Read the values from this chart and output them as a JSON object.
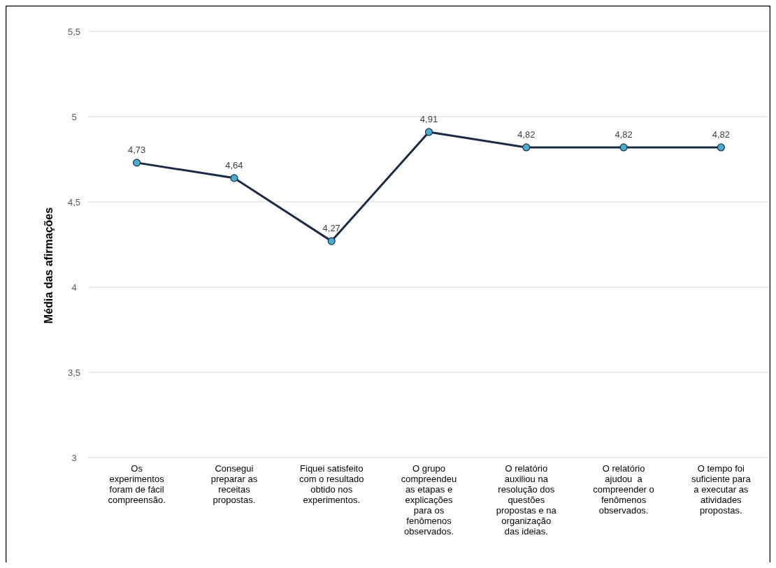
{
  "chart_data": {
    "type": "line",
    "ylabel": "Média das afirmações",
    "categories": [
      "Os experimentos foram de fácil compreensão.",
      "Consegui preparar as receitas propostas.",
      "Fiquei satisfeito com o resultado obtido nos experimentos.",
      "O grupo compreendeu as etapas e explicações para os fenômenos observados.",
      "O relatório auxiliou na resolução dos questões propostas e na organização das ideias.",
      "O relatório ajudou  a compreender o fenômenos observados.",
      "O tempo foi suficiente para a executar as atividades propostas."
    ],
    "series": [
      {
        "color": "#1c2b45",
        "values": [
          4.73,
          4.64,
          4.27,
          4.91,
          4.82,
          4.82,
          4.82
        ],
        "value_labels": [
          "4,73",
          "4,64",
          "4,27",
          "4,91",
          "4,82",
          "4,82",
          "4,82"
        ]
      }
    ],
    "ylim": [
      3,
      5.5
    ],
    "yticks": [
      3,
      {
        "value": 3.5,
        "label": "3,5"
      },
      4,
      {
        "value": 4.5,
        "label": "4,5"
      },
      5,
      {
        "value": 5.5,
        "label": "5,5"
      }
    ],
    "grid": "y",
    "marker": "circle",
    "line_style": "solid"
  }
}
